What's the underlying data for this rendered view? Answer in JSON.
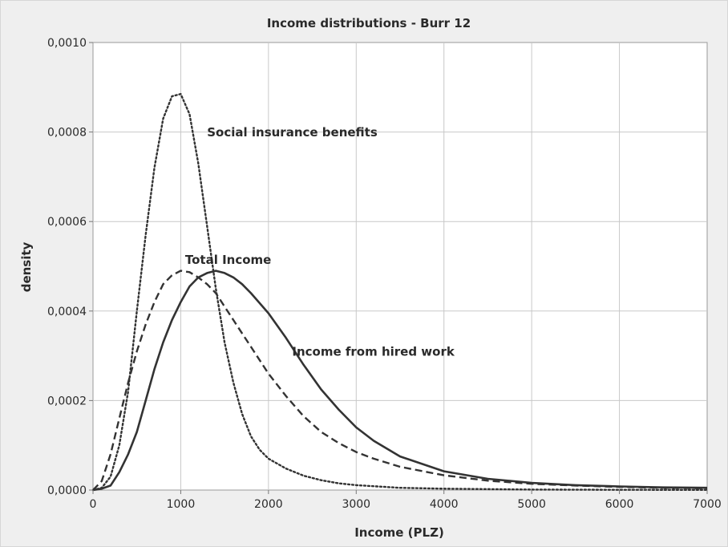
{
  "chart_data": {
    "type": "line",
    "title": "Income distributions - Burr 12",
    "xlabel": "Income (PLZ)",
    "ylabel": "density",
    "xlim": [
      0,
      7000
    ],
    "ylim": [
      0,
      0.001
    ],
    "x_ticks": [
      "0",
      "1000",
      "2000",
      "3000",
      "4000",
      "5000",
      "6000",
      "7000"
    ],
    "y_ticks": [
      "0,0000",
      "0,0002",
      "0,0004",
      "0,0006",
      "0,0008",
      "0,0010"
    ],
    "grid": true,
    "series": [
      {
        "name": "Social insurance benefits",
        "style": "dotted",
        "x": [
          0,
          100,
          200,
          300,
          400,
          500,
          600,
          700,
          800,
          900,
          1000,
          1100,
          1200,
          1300,
          1400,
          1500,
          1600,
          1700,
          1800,
          1900,
          2000,
          2200,
          2400,
          2600,
          2800,
          3000,
          3500,
          4000,
          5000,
          6000,
          7000
        ],
        "y": [
          0,
          5e-06,
          3e-05,
          0.0001,
          0.00022,
          0.0004,
          0.00057,
          0.00072,
          0.00083,
          0.00088,
          0.000885,
          0.00084,
          0.00073,
          0.00059,
          0.00045,
          0.00033,
          0.00024,
          0.00017,
          0.00012,
          9e-05,
          7e-05,
          4.8e-05,
          3.2e-05,
          2.2e-05,
          1.5e-05,
          1.1e-05,
          5e-06,
          3e-06,
          1e-06,
          5e-07,
          3e-07
        ]
      },
      {
        "name": "Total Income",
        "style": "dashed",
        "x": [
          0,
          100,
          200,
          300,
          400,
          500,
          600,
          700,
          800,
          900,
          1000,
          1100,
          1200,
          1300,
          1400,
          1500,
          1600,
          1700,
          1800,
          2000,
          2200,
          2400,
          2600,
          2800,
          3000,
          3200,
          3500,
          4000,
          4500,
          5000,
          5500,
          6000,
          6500,
          7000
        ],
        "y": [
          0,
          2e-05,
          8e-05,
          0.00016,
          0.00024,
          0.00031,
          0.00037,
          0.00042,
          0.00046,
          0.00048,
          0.00049,
          0.000487,
          0.000475,
          0.00046,
          0.00044,
          0.00041,
          0.00038,
          0.00035,
          0.00032,
          0.00026,
          0.00021,
          0.000165,
          0.00013,
          0.000105,
          8.5e-05,
          7e-05,
          5.2e-05,
          3.3e-05,
          2.1e-05,
          1.4e-05,
          1e-05,
          7e-06,
          5e-06,
          4e-06
        ]
      },
      {
        "name": "Income from hired work",
        "style": "solid",
        "x": [
          0,
          100,
          200,
          300,
          400,
          500,
          600,
          700,
          800,
          900,
          1000,
          1100,
          1200,
          1300,
          1400,
          1500,
          1600,
          1700,
          1800,
          2000,
          2200,
          2400,
          2600,
          2800,
          3000,
          3200,
          3500,
          4000,
          4500,
          5000,
          5500,
          6000,
          6500,
          7000
        ],
        "y": [
          0,
          3e-06,
          1e-05,
          4e-05,
          8e-05,
          0.00013,
          0.0002,
          0.00027,
          0.00033,
          0.00038,
          0.00042,
          0.000455,
          0.000475,
          0.000485,
          0.00049,
          0.000485,
          0.000475,
          0.00046,
          0.00044,
          0.000395,
          0.00034,
          0.00028,
          0.000225,
          0.00018,
          0.00014,
          0.00011,
          7.5e-05,
          4.2e-05,
          2.5e-05,
          1.6e-05,
          1.1e-05,
          8e-06,
          6e-06,
          5e-06
        ]
      }
    ],
    "annotations": [
      {
        "text": "Social insurance benefits",
        "x": 1300,
        "y": 0.00079
      },
      {
        "text": "Total Income",
        "x": 1050,
        "y": 0.000505
      },
      {
        "text": "Income from hired work",
        "x": 2270,
        "y": 0.0003
      }
    ]
  }
}
